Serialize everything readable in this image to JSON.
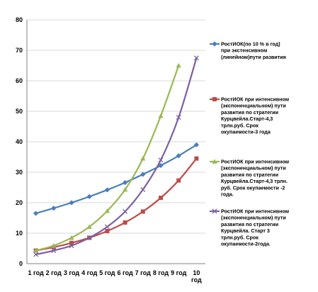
{
  "chart_data": {
    "type": "line",
    "title": "",
    "xlabel": "",
    "ylabel": "",
    "ylim": [
      0,
      80
    ],
    "yticks": [
      0,
      10,
      20,
      30,
      40,
      50,
      60,
      70,
      80
    ],
    "grid": true,
    "legend_position": "right",
    "categories": [
      [
        "1 год"
      ],
      [
        "2 год"
      ],
      [
        "3 год"
      ],
      [
        "4 год"
      ],
      [
        "5 год"
      ],
      [
        "6 год"
      ],
      [
        "7 год"
      ],
      [
        "8 год"
      ],
      [
        "9 год"
      ],
      [
        "10",
        "год"
      ]
    ],
    "series": [
      {
        "name_lines": [
          "РостИОК(по 10 % в год)",
          "при экстенсивном",
          "(линейном)пути развития"
        ],
        "color": "#4a7ebb",
        "marker": "diamond",
        "values": [
          16.5,
          18.2,
          20.0,
          22.0,
          24.2,
          26.6,
          29.3,
          32.2,
          35.4,
          39.0
        ]
      },
      {
        "name_lines": [
          "РостИОК при интенсивном",
          "(экспоненциальном) пути",
          "развития по стратегии",
          "Курцвейла.Старт-4,3",
          "трлн.руб. Срок",
          "окупаемости-3 года"
        ],
        "color": "#be4b48",
        "marker": "square",
        "values": [
          4.3,
          5.4,
          6.8,
          8.5,
          10.7,
          13.5,
          17.1,
          21.6,
          27.3,
          34.5
        ]
      },
      {
        "name_lines": [
          "РостИОК при интенсивном",
          "(экспоненциальном) пути",
          "развития по стратегии",
          "Курцвейла.Старт-4,3 трлн.",
          "руб. Срок окупаемости -2",
          "года."
        ],
        "color": "#98b954",
        "marker": "triangle",
        "values": [
          4.3,
          5.9,
          8.5,
          12.1,
          17.3,
          24.3,
          34.5,
          48.5,
          65.0,
          null
        ]
      },
      {
        "name_lines": [
          "РостИОК при интенсивном",
          "(экспоненциальном) пути",
          "развития по стратегии",
          "Курцвейла. Старт 3",
          "трлн.руб. Срок",
          "окупаемости-2года."
        ],
        "color": "#7d60a0",
        "marker": "x",
        "values": [
          3.0,
          4.3,
          5.9,
          8.5,
          12.1,
          17.1,
          24.3,
          34.0,
          48.0,
          67.5
        ]
      }
    ]
  }
}
